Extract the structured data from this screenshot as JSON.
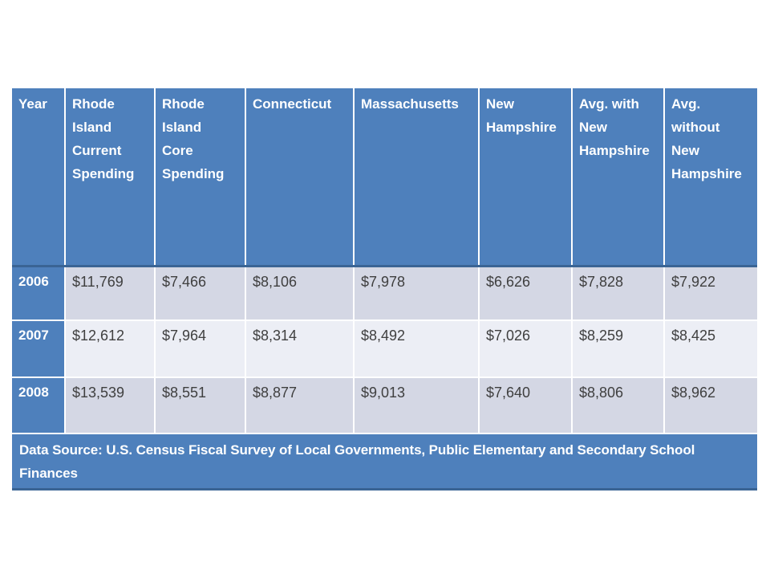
{
  "chart_data": {
    "type": "table",
    "title": "",
    "columns": [
      "Year",
      "Rhode Island Current Spending",
      "Rhode Island Core Spending",
      "Connecticut",
      "Massachusetts",
      "New Hampshire",
      "Avg. with New Hampshire",
      "Avg. without New Hampshire"
    ],
    "rows": [
      {
        "year": "2006",
        "cells": [
          "$11,769",
          "$7,466",
          "$8,106",
          "$7,978",
          "$6,626",
          "$7,828",
          "$7,922"
        ]
      },
      {
        "year": "2007",
        "cells": [
          "$12,612",
          "$7,964",
          "$8,314",
          "$8,492",
          "$7,026",
          "$8,259",
          "$8,425"
        ]
      },
      {
        "year": "2008",
        "cells": [
          "$13,539",
          "$8,551",
          "$8,877",
          "$9,013",
          "$7,640",
          "$8,806",
          "$8,962"
        ]
      }
    ],
    "footnote": "Data Source: U.S. Census Fiscal Survey of Local Governments, Public Elementary and Secondary School Finances"
  },
  "colors": {
    "header_bg": "#4E80BC",
    "band_dark": "#D4D7E4",
    "band_light": "#ECEEF5",
    "accent_border": "#3A6494",
    "header_text": "#FFFFFF",
    "cell_text": "#3F3F3F"
  }
}
